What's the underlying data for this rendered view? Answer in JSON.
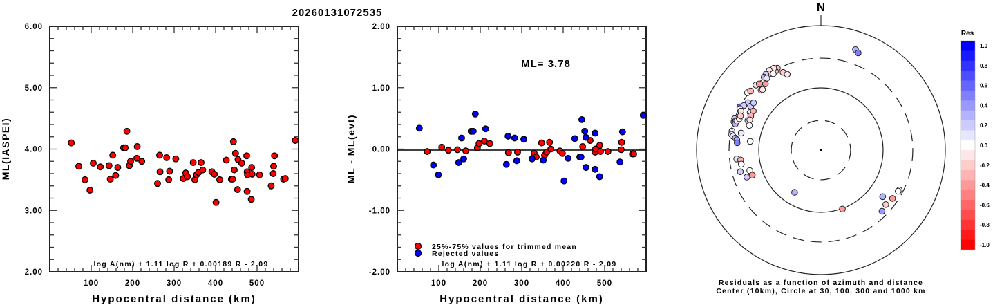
{
  "title": "20260131072535",
  "chart_data": [
    {
      "type": "scatter",
      "id": "ml-vs-distance",
      "xlabel": "Hypocentral distance (km)",
      "ylabel": "ML(IASPEI)",
      "xlim": [
        0,
        600
      ],
      "ylim": [
        2.0,
        6.0
      ],
      "xticks": [
        100,
        200,
        300,
        400,
        500
      ],
      "xtick_labels": [
        "100",
        "200",
        "300",
        "400",
        "500"
      ],
      "yticks": [
        2.0,
        3.0,
        4.0,
        5.0,
        6.0
      ],
      "ytick_labels": [
        "2.00",
        "3.00",
        "4.00",
        "5.00",
        "6.00"
      ],
      "annotation": "log A(nm) + 1.11 log R + 0.00189 R - 2.09",
      "series": [
        {
          "name": "ML",
          "color": "#ff0000",
          "points": [
            [
              52,
              4.1
            ],
            [
              70,
              3.72
            ],
            [
              85,
              3.5
            ],
            [
              97,
              3.33
            ],
            [
              105,
              3.77
            ],
            [
              122,
              3.71
            ],
            [
              143,
              3.73
            ],
            [
              146,
              3.51
            ],
            [
              152,
              3.9
            ],
            [
              159,
              3.57
            ],
            [
              164,
              3.7
            ],
            [
              178,
              4.02
            ],
            [
              182,
              4.02
            ],
            [
              186,
              4.29
            ],
            [
              192,
              3.73
            ],
            [
              195,
              3.8
            ],
            [
              210,
              3.85
            ],
            [
              211,
              4.04
            ],
            [
              222,
              3.8
            ],
            [
              260,
              3.44
            ],
            [
              265,
              3.9
            ],
            [
              266,
              3.63
            ],
            [
              282,
              3.86
            ],
            [
              287,
              3.5
            ],
            [
              289,
              3.64
            ],
            [
              304,
              3.84
            ],
            [
              322,
              3.52
            ],
            [
              328,
              3.61
            ],
            [
              332,
              3.55
            ],
            [
              346,
              3.78
            ],
            [
              350,
              3.5
            ],
            [
              354,
              3.58
            ],
            [
              359,
              3.62
            ],
            [
              365,
              3.78
            ],
            [
              369,
              3.66
            ],
            [
              391,
              3.63
            ],
            [
              397,
              3.59
            ],
            [
              401,
              3.13
            ],
            [
              410,
              3.5
            ],
            [
              426,
              3.82
            ],
            [
              438,
              3.51
            ],
            [
              441,
              3.51
            ],
            [
              443,
              4.12
            ],
            [
              445,
              3.66
            ],
            [
              448,
              3.93
            ],
            [
              453,
              3.34
            ],
            [
              454,
              3.83
            ],
            [
              463,
              3.77
            ],
            [
              475,
              3.89
            ],
            [
              476,
              3.31
            ],
            [
              476,
              3.63
            ],
            [
              477,
              3.58
            ],
            [
              486,
              3.18
            ],
            [
              487,
              3.7
            ],
            [
              488,
              3.59
            ],
            [
              506,
              3.58
            ],
            [
              534,
              3.4
            ],
            [
              539,
              3.6
            ],
            [
              540,
              3.72
            ],
            [
              542,
              3.89
            ],
            [
              564,
              3.51
            ],
            [
              568,
              3.52
            ],
            [
              592,
              4.14
            ]
          ]
        }
      ]
    },
    {
      "type": "scatter",
      "id": "residual-vs-distance",
      "xlabel": "Hypocentral distance (km)",
      "ylabel": "ML - ML(evt)",
      "xlim": [
        0,
        600
      ],
      "ylim": [
        -2.0,
        2.0
      ],
      "xticks": [
        100,
        200,
        300,
        400,
        500
      ],
      "xtick_labels": [
        "100",
        "200",
        "300",
        "400",
        "500"
      ],
      "yticks": [
        -2.0,
        -1.0,
        0.0,
        1.0,
        2.0
      ],
      "ytick_labels": [
        "-2.00",
        "-1.00",
        "0.00",
        "1.00",
        "2.00"
      ],
      "reference_line": 0.0,
      "ml_label": "ML= 3.78",
      "annotation": "log A(nm) + 1.11 log R + 0.00220 R - 2.09",
      "legend": [
        {
          "label": "25%-75% values for trimmed mean",
          "color": "#ff0000"
        },
        {
          "label": "Rejected values",
          "color": "#0000ff"
        }
      ],
      "legend_position": "bottom-left",
      "series": [
        {
          "name": "25%-75% values for trimmed mean",
          "color": "#ff0000",
          "points": [
            [
              72,
              -0.04
            ],
            [
              107,
              0.03
            ],
            [
              123,
              -0.02
            ],
            [
              145,
              -0.01
            ],
            [
              165,
              -0.03
            ],
            [
              193,
              0.02
            ],
            [
              197,
              0.09
            ],
            [
              210,
              0.13
            ],
            [
              223,
              0.09
            ],
            [
              268,
              -0.06
            ],
            [
              290,
              -0.05
            ],
            [
              330,
              -0.07
            ],
            [
              335,
              -0.13
            ],
            [
              348,
              0.1
            ],
            [
              355,
              -0.1
            ],
            [
              360,
              -0.05
            ],
            [
              367,
              0.11
            ],
            [
              370,
              0.0
            ],
            [
              392,
              -0.03
            ],
            [
              398,
              -0.07
            ],
            [
              447,
              0.04
            ],
            [
              465,
              0.14
            ],
            [
              477,
              -0.05
            ],
            [
              478,
              0.0
            ],
            [
              488,
              0.06
            ],
            [
              490,
              -0.04
            ],
            [
              508,
              -0.04
            ],
            [
              540,
              -0.01
            ],
            [
              541,
              0.11
            ],
            [
              567,
              -0.08
            ],
            [
              570,
              -0.08
            ]
          ]
        },
        {
          "name": "Rejected values",
          "color": "#0000ff",
          "points": [
            [
              53,
              0.34
            ],
            [
              87,
              -0.26
            ],
            [
              99,
              -0.42
            ],
            [
              148,
              -0.22
            ],
            [
              155,
              0.18
            ],
            [
              160,
              -0.16
            ],
            [
              178,
              0.29
            ],
            [
              183,
              0.29
            ],
            [
              188,
              0.57
            ],
            [
              213,
              0.33
            ],
            [
              263,
              -0.25
            ],
            [
              267,
              0.21
            ],
            [
              283,
              0.18
            ],
            [
              288,
              -0.19
            ],
            [
              305,
              0.16
            ],
            [
              325,
              -0.16
            ],
            [
              352,
              -0.18
            ],
            [
              402,
              -0.52
            ],
            [
              412,
              -0.15
            ],
            [
              428,
              0.17
            ],
            [
              440,
              -0.13
            ],
            [
              443,
              -0.13
            ],
            [
              445,
              0.48
            ],
            [
              452,
              0.29
            ],
            [
              455,
              -0.3
            ],
            [
              455,
              0.19
            ],
            [
              477,
              0.26
            ],
            [
              477,
              -0.33
            ],
            [
              488,
              -0.45
            ],
            [
              537,
              -0.21
            ],
            [
              543,
              0.28
            ],
            [
              593,
              0.55
            ]
          ]
        }
      ]
    },
    {
      "type": "scatter",
      "id": "residual-polar",
      "north_label": "N",
      "caption_line1": "Residuals as a function of azimuth and distance",
      "caption_line2": "Center (10km), Circle at 30, 100, 300 and 1000 km",
      "rings_km": [
        30,
        100,
        300,
        1000
      ],
      "colorbar": {
        "title": "Res",
        "range": [
          -1.0,
          1.0
        ],
        "tick_labels": [
          "1.0",
          "0.8",
          "0.6",
          "0.4",
          "0.2",
          "0.0",
          "-0.2",
          "-0.4",
          "-0.6",
          "-0.8",
          "-1.0"
        ],
        "positive_color": "#0000ff",
        "negative_color": "#ff0000",
        "zero_color": "#ffffff"
      },
      "points_note": "azimuth_deg, distance_km, residual",
      "points": [
        [
          19,
          510,
          0.3
        ],
        [
          21,
          470,
          0.45
        ],
        [
          -28,
          310,
          -0.25
        ],
        [
          -30,
          290,
          -0.2
        ],
        [
          -30,
          330,
          -0.1
        ],
        [
          -33,
          335,
          -0.1
        ],
        [
          -34,
          300,
          -0.2
        ],
        [
          -32,
          280,
          0.0
        ],
        [
          -36,
          320,
          0.2
        ],
        [
          -38,
          305,
          0.3
        ],
        [
          -37,
          280,
          0.05
        ],
        [
          -26,
          245,
          -0.2
        ],
        [
          -24,
          215,
          -0.15
        ],
        [
          -45,
          300,
          -0.15
        ],
        [
          -43,
          285,
          -0.4
        ],
        [
          -40,
          245,
          -0.45
        ],
        [
          -52,
          315,
          -0.05
        ],
        [
          -50,
          300,
          -0.35
        ],
        [
          -45,
          230,
          -0.25
        ],
        [
          -44,
          225,
          -0.15
        ],
        [
          -57,
          250,
          0.15
        ],
        [
          -62,
          300,
          0.55
        ],
        [
          -60,
          270,
          0.2
        ],
        [
          -63,
          290,
          0.0
        ],
        [
          -64,
          270,
          -0.15
        ],
        [
          -58,
          215,
          0.15
        ],
        [
          -55,
          210,
          0.2
        ],
        [
          -62,
          195,
          0.1
        ],
        [
          -60,
          180,
          -0.3
        ],
        [
          -64,
          180,
          -0.35
        ],
        [
          -68,
          185,
          0.05
        ],
        [
          -67,
          175,
          -0.15
        ],
        [
          -70,
          300,
          0.2
        ],
        [
          -72,
          295,
          0.25
        ],
        [
          -71,
          280,
          0.1
        ],
        [
          -73,
          275,
          0.3
        ],
        [
          -71,
          270,
          -0.1
        ],
        [
          -69,
          255,
          -0.05
        ],
        [
          -67,
          255,
          -0.2
        ],
        [
          -78,
          290,
          0.05
        ],
        [
          -80,
          290,
          0.15
        ],
        [
          -81,
          270,
          -0.15
        ],
        [
          -82,
          245,
          0.25
        ],
        [
          -83,
          230,
          0.3
        ],
        [
          -85,
          225,
          0.5
        ],
        [
          -78,
          205,
          0.05
        ],
        [
          -71,
          165,
          0.0
        ],
        [
          -83,
          140,
          0.0
        ],
        [
          -96,
          230,
          0.05
        ],
        [
          -97,
          200,
          -0.3
        ],
        [
          -100,
          200,
          0.0
        ],
        [
          -105,
          220,
          0.15
        ],
        [
          -110,
          185,
          0.2
        ],
        [
          -106,
          155,
          0.0
        ],
        [
          -110,
          150,
          -0.45
        ],
        [
          -148,
          63,
          0.3
        ],
        [
          160,
          102,
          -0.45
        ],
        [
          127,
          175,
          0.3
        ],
        [
          117,
          260,
          -0.1
        ],
        [
          118,
          255,
          0.0
        ],
        [
          124,
          245,
          -0.4
        ],
        [
          130,
          230,
          -0.25
        ],
        [
          135,
          245,
          0.35
        ]
      ]
    }
  ]
}
